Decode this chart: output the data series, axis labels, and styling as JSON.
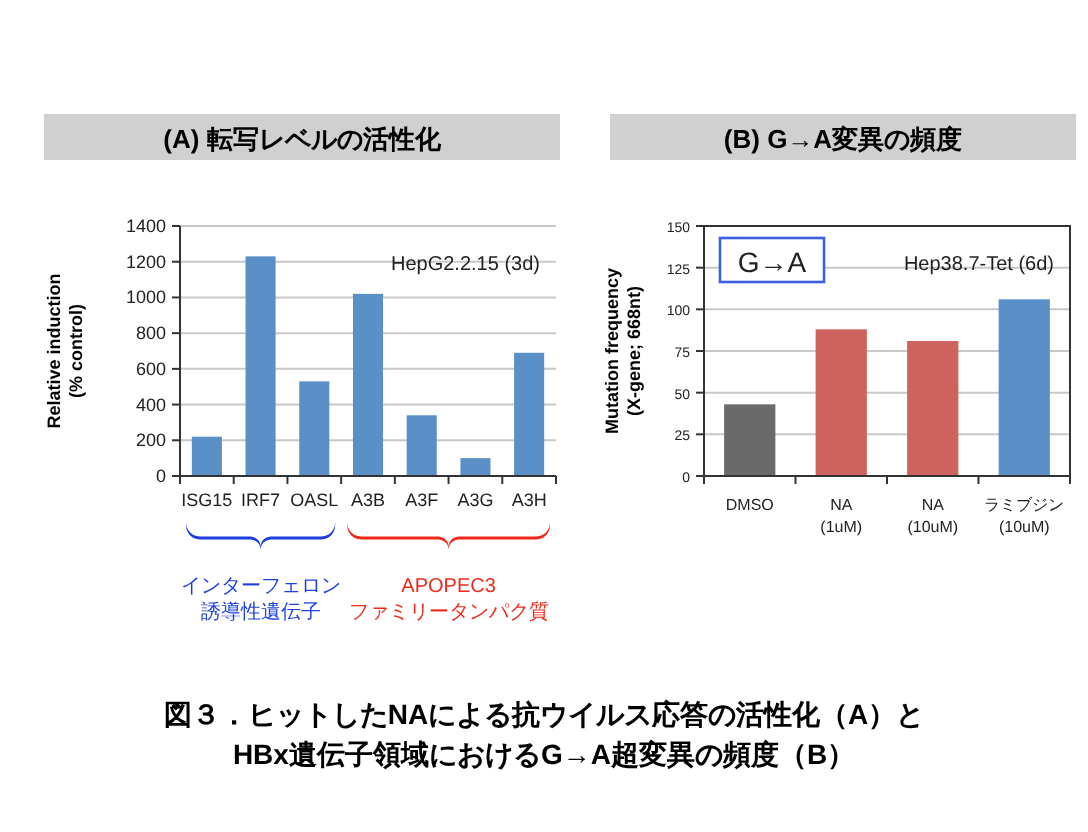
{
  "chart_data": [
    {
      "type": "bar",
      "title": "(A) 転写レベルの活性化",
      "ylabel": "Relative induction\n(% control)",
      "categories": [
        "ISG15",
        "IRF7",
        "OASL",
        "A3B",
        "A3F",
        "A3G",
        "A3H"
      ],
      "series": [
        {
          "color": "#5b8fc8",
          "values": [
            220,
            1230,
            530,
            1020,
            340,
            100,
            690
          ]
        }
      ],
      "ylim": [
        0,
        1400
      ],
      "yticks": [
        0,
        200,
        400,
        600,
        800,
        1000,
        1200,
        1400
      ],
      "grid": "y",
      "annotations": [
        "HepG2.2.15 (3d)",
        "インターフェロン",
        "誘導性遺伝子",
        "APOPEC3",
        "ファミリータンパク質"
      ]
    },
    {
      "type": "bar",
      "title": "(B) G→A変異の頻度",
      "ylabel": "Mutation frequency\n(X-gene; 668nt)",
      "categories": [
        "DMSO",
        "NA\n(1uM)",
        "NA\n(10uM)",
        "ラミブジン\n(10uM)"
      ],
      "values": [
        43,
        88,
        81,
        106
      ],
      "colors": [
        "#6a6a6a",
        "#cd635c",
        "#cd635c",
        "#5b8fc8"
      ],
      "ylim": [
        0,
        150
      ],
      "yticks": [
        0,
        25,
        50,
        75,
        100,
        125,
        150
      ],
      "grid": "y",
      "annotations": [
        "G→A",
        "Hep38.7-Tet (6d)",
        "図３．ヒットしたNAによる抗ウイルス応答の活性化（A）と",
        "HBx遺伝子領域におけるG→A超変異の頻度（B）"
      ]
    }
  ]
}
